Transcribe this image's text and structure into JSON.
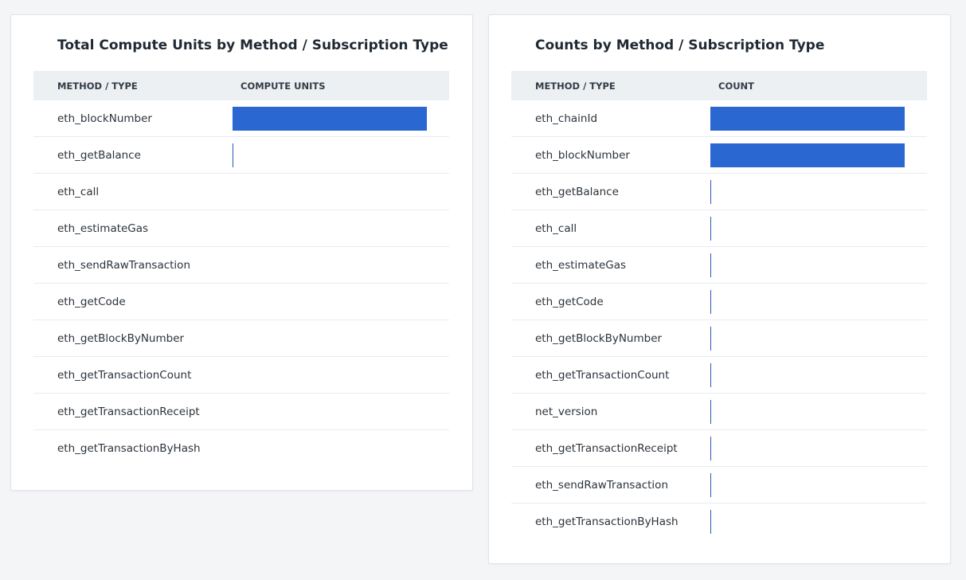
{
  "colors": {
    "bar": "#2b67d1",
    "background": "#f4f5f7",
    "header_bg": "#ecf0f3"
  },
  "left_panel": {
    "title": "Total Compute Units by Method / Subscription Type",
    "col_method": "METHOD / TYPE",
    "col_value": "COMPUTE UNITS",
    "rows": [
      {
        "name": "eth_blockNumber",
        "fraction": 1.0
      },
      {
        "name": "eth_getBalance",
        "fraction": 0.004
      },
      {
        "name": "eth_call",
        "fraction": 0
      },
      {
        "name": "eth_estimateGas",
        "fraction": 0
      },
      {
        "name": "eth_sendRawTransaction",
        "fraction": 0
      },
      {
        "name": "eth_getCode",
        "fraction": 0
      },
      {
        "name": "eth_getBlockByNumber",
        "fraction": 0
      },
      {
        "name": "eth_getTransactionCount",
        "fraction": 0
      },
      {
        "name": "eth_getTransactionReceipt",
        "fraction": 0
      },
      {
        "name": "eth_getTransactionByHash",
        "fraction": 0
      }
    ]
  },
  "right_panel": {
    "title": "Counts by Method / Subscription Type",
    "col_method": "METHOD / TYPE",
    "col_value": "COUNT",
    "rows": [
      {
        "name": "eth_chainId",
        "fraction": 1.0
      },
      {
        "name": "eth_blockNumber",
        "fraction": 1.0
      },
      {
        "name": "eth_getBalance",
        "fraction": 0.004
      },
      {
        "name": "eth_call",
        "fraction": 0.004
      },
      {
        "name": "eth_estimateGas",
        "fraction": 0.004
      },
      {
        "name": "eth_getCode",
        "fraction": 0.004
      },
      {
        "name": "eth_getBlockByNumber",
        "fraction": 0.004
      },
      {
        "name": "eth_getTransactionCount",
        "fraction": 0.004
      },
      {
        "name": "net_version",
        "fraction": 0.004
      },
      {
        "name": "eth_getTransactionReceipt",
        "fraction": 0.004
      },
      {
        "name": "eth_sendRawTransaction",
        "fraction": 0.004
      },
      {
        "name": "eth_getTransactionByHash",
        "fraction": 0.004
      }
    ]
  }
}
